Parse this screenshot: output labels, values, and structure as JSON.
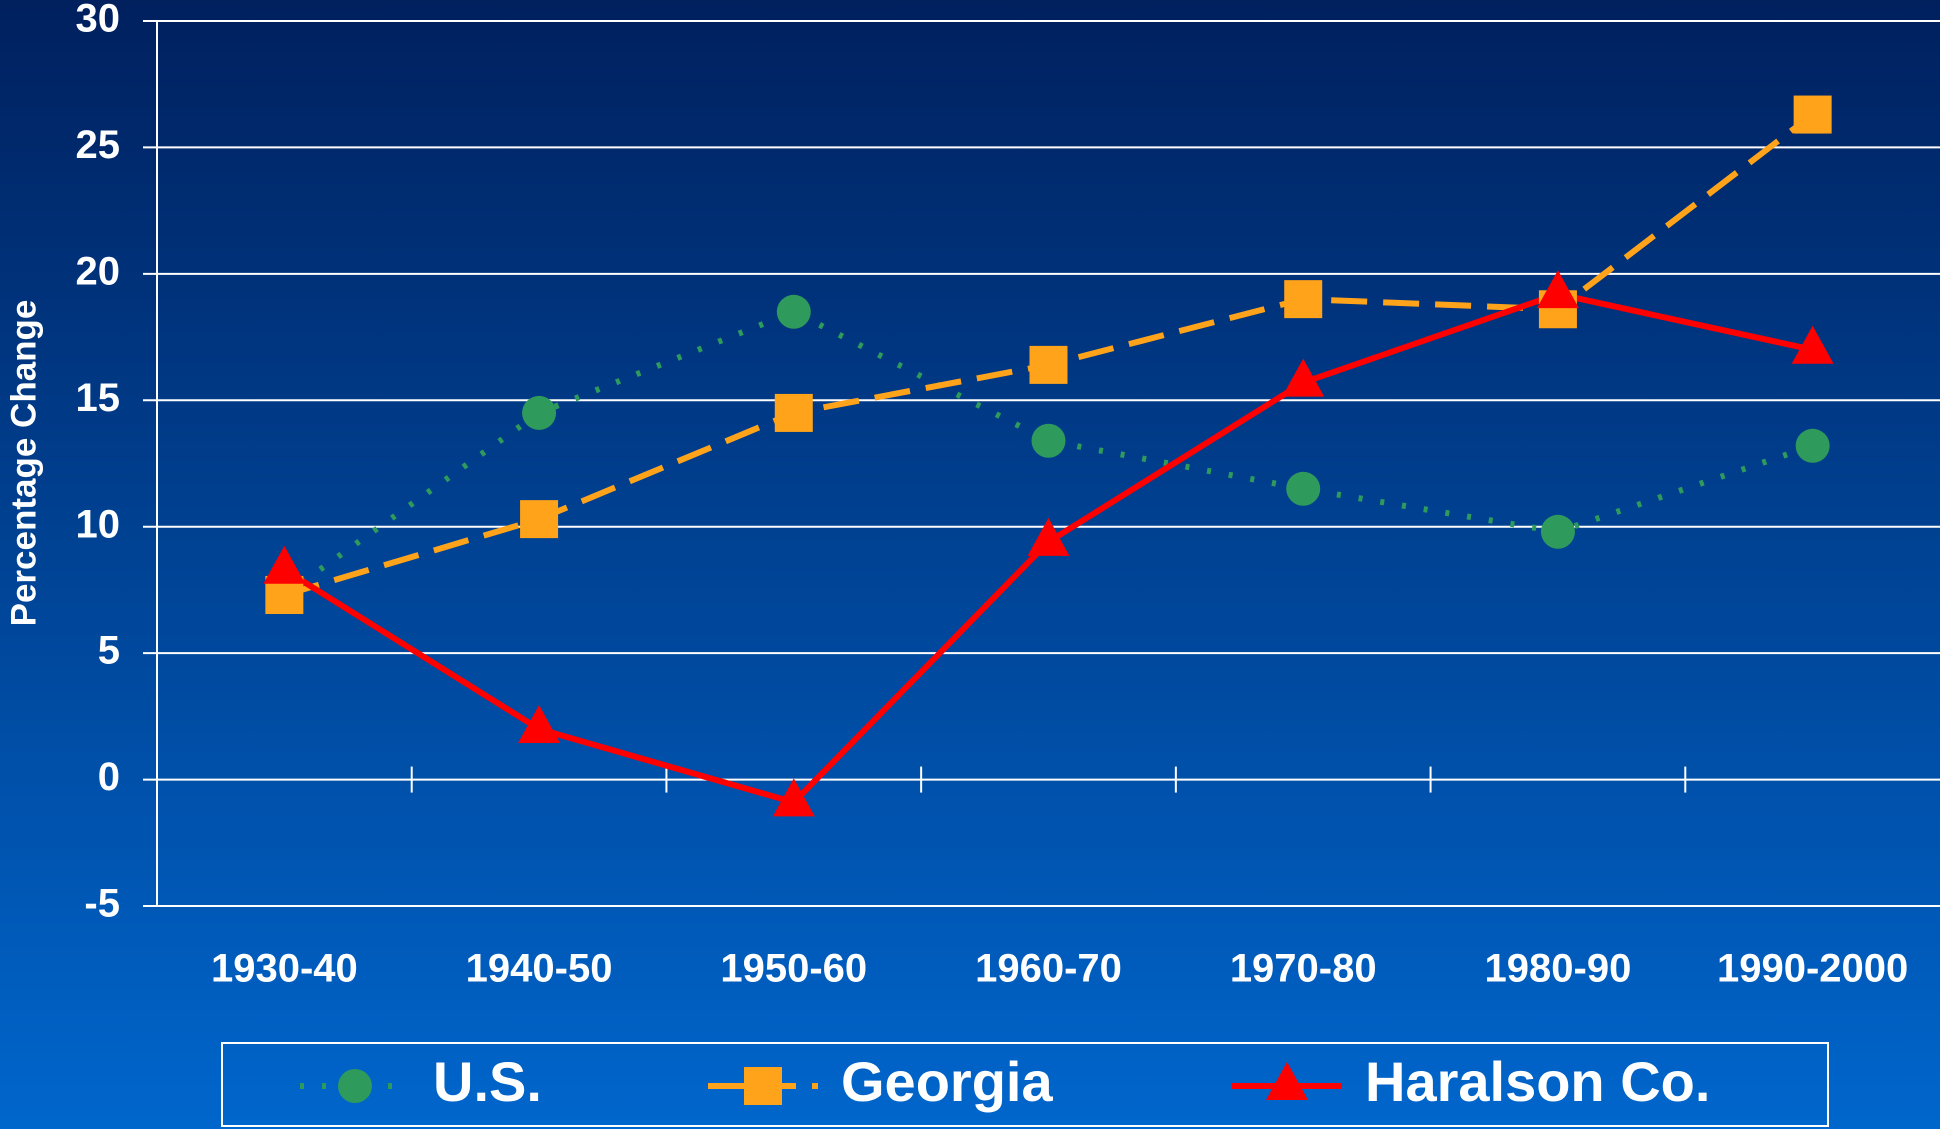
{
  "chart_data": {
    "type": "line",
    "y_label": "Percentage Change",
    "categories": [
      "1930-40",
      "1940-50",
      "1950-60",
      "1960-70",
      "1970-80",
      "1980-90",
      "1990-2000"
    ],
    "series": [
      {
        "name": "U.S.",
        "color": "#2e9b5c",
        "values": [
          7.3,
          14.5,
          18.5,
          13.4,
          11.5,
          9.8,
          13.2
        ]
      },
      {
        "name": "Georgia",
        "color": "#ffa31a",
        "values": [
          7.3,
          10.3,
          14.5,
          16.4,
          19.0,
          18.6,
          26.3
        ]
      },
      {
        "name": "Haralson Co.",
        "color": "#ff0000",
        "values": [
          8.3,
          2.0,
          -0.9,
          9.4,
          15.7,
          19.2,
          17.0
        ]
      }
    ],
    "ylim": [
      -5,
      30
    ],
    "yticks": [
      -5,
      0,
      5,
      10,
      15,
      20,
      25,
      30
    ],
    "grid": true
  }
}
